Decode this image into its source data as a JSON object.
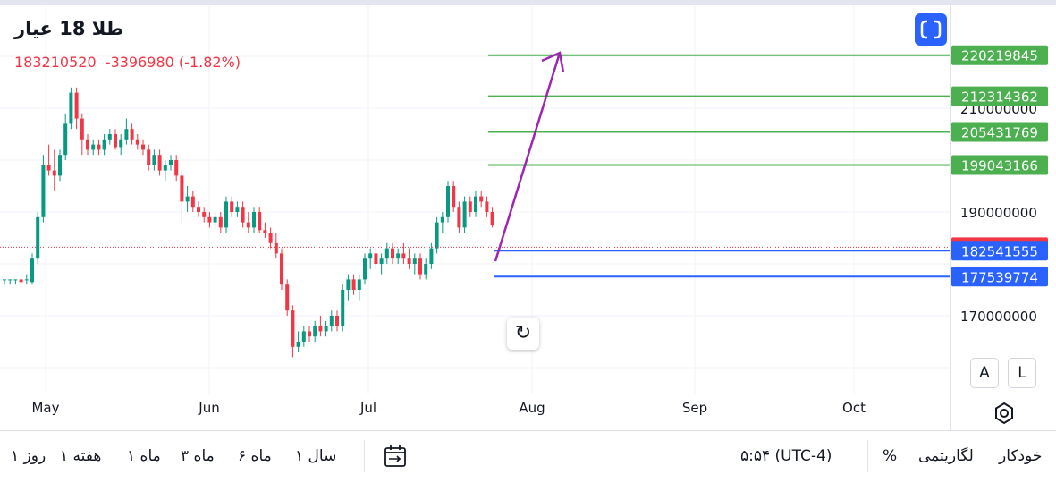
{
  "header": {
    "title": "طلا 18 عیار",
    "last_price": "183210520",
    "change": "-3396980",
    "change_pct": "(-1.82%)"
  },
  "buttons": {
    "reset_glyph": "↻",
    "scale_auto": "A",
    "scale_log": "L"
  },
  "chart_data": {
    "type": "candlestick",
    "title": "",
    "x_labels": [
      "May",
      "Jun",
      "Jul",
      "Aug",
      "Sep",
      "Oct"
    ],
    "y_ticks": [
      170000000,
      190000000,
      210000000
    ],
    "y_range": [
      162000000,
      228000000
    ],
    "last_price": 183210520,
    "price_levels_resistance": [
      220219845,
      212314362,
      205431769,
      199043166
    ],
    "price_levels_support": [
      182541555,
      177539774
    ],
    "candles": [
      [
        177,
        177,
        176,
        177
      ],
      [
        177,
        177,
        176,
        177
      ],
      [
        177,
        177,
        176,
        177
      ],
      [
        177,
        177,
        176,
        176.5
      ],
      [
        177,
        178,
        176,
        177
      ],
      [
        176.5,
        182,
        176,
        181
      ],
      [
        181,
        190,
        180,
        189
      ],
      [
        189,
        201,
        188,
        199
      ],
      [
        199,
        203,
        197,
        198
      ],
      [
        198,
        202,
        194,
        197
      ],
      [
        197,
        202,
        196,
        201
      ],
      [
        201,
        209,
        200,
        207
      ],
      [
        207,
        214,
        206,
        213
      ],
      [
        213,
        214,
        206,
        208
      ],
      [
        208,
        209,
        201,
        204
      ],
      [
        204,
        205,
        201,
        202
      ],
      [
        202,
        204,
        201,
        203
      ],
      [
        203,
        204,
        201,
        202
      ],
      [
        202,
        205,
        201,
        204
      ],
      [
        204,
        206,
        203,
        205
      ],
      [
        205,
        206,
        202,
        202.5
      ],
      [
        202.5,
        205,
        201,
        204
      ],
      [
        204,
        208,
        203,
        206
      ],
      [
        206,
        207,
        203,
        204
      ],
      [
        204,
        205,
        202,
        203
      ],
      [
        203,
        204,
        201,
        202
      ],
      [
        202,
        203,
        198,
        199
      ],
      [
        199,
        202,
        198,
        201
      ],
      [
        201,
        202,
        197,
        198
      ],
      [
        198,
        200,
        196,
        199
      ],
      [
        199,
        201,
        198,
        200
      ],
      [
        200,
        201,
        196,
        197
      ],
      [
        197,
        198,
        188,
        192
      ],
      [
        192,
        195,
        190,
        193
      ],
      [
        193,
        194,
        190,
        191
      ],
      [
        191,
        192,
        189,
        190
      ],
      [
        190,
        191,
        188,
        189
      ],
      [
        189,
        190,
        187,
        188
      ],
      [
        188,
        190,
        187,
        189
      ],
      [
        189,
        190,
        186,
        187
      ],
      [
        187,
        193,
        186,
        192
      ],
      [
        192,
        193,
        189,
        190
      ],
      [
        190,
        192,
        189,
        191
      ],
      [
        191,
        192,
        187,
        188
      ],
      [
        188,
        190,
        186,
        187
      ],
      [
        187,
        191,
        186,
        190
      ],
      [
        190,
        191,
        186,
        186.5
      ],
      [
        186.5,
        188,
        185,
        186
      ],
      [
        186,
        187,
        183,
        184
      ],
      [
        184,
        186,
        181,
        182
      ],
      [
        182,
        183,
        175,
        176
      ],
      [
        176,
        177,
        170,
        171
      ],
      [
        171,
        172,
        162,
        164
      ],
      [
        164,
        167,
        163,
        165
      ],
      [
        165,
        168,
        164,
        167
      ],
      [
        167,
        168,
        165,
        166
      ],
      [
        166,
        169,
        165,
        168
      ],
      [
        168,
        170,
        166,
        167
      ],
      [
        167,
        169,
        166,
        168
      ],
      [
        168,
        171,
        167,
        170
      ],
      [
        170,
        171,
        167,
        168
      ],
      [
        168,
        176,
        167,
        175
      ],
      [
        175,
        178,
        173,
        177
      ],
      [
        177,
        178,
        174,
        175
      ],
      [
        175,
        178,
        173,
        177
      ],
      [
        177,
        182,
        176,
        181
      ],
      [
        181,
        183,
        179,
        182
      ],
      [
        182,
        183,
        179,
        180
      ],
      [
        180,
        182,
        178,
        181
      ],
      [
        181,
        184,
        180,
        183
      ],
      [
        183,
        184,
        180,
        181
      ],
      [
        181,
        183,
        180,
        182
      ],
      [
        182,
        184,
        180,
        181
      ],
      [
        181,
        183,
        179,
        180
      ],
      [
        180,
        182,
        178,
        181
      ],
      [
        181,
        182,
        177,
        178
      ],
      [
        178,
        181,
        177,
        180
      ],
      [
        180,
        184,
        179,
        183
      ],
      [
        183,
        189,
        182,
        188
      ],
      [
        188,
        190,
        186,
        189
      ],
      [
        189,
        196,
        188,
        195
      ],
      [
        195,
        196,
        190,
        191
      ],
      [
        191,
        192,
        186,
        187
      ],
      [
        187,
        193,
        186,
        192
      ],
      [
        192,
        193,
        189,
        190
      ],
      [
        190,
        194,
        189,
        193
      ],
      [
        193,
        194,
        191,
        192
      ],
      [
        192,
        193,
        189,
        190
      ],
      [
        190,
        191,
        187,
        187.5
      ]
    ]
  }
}
